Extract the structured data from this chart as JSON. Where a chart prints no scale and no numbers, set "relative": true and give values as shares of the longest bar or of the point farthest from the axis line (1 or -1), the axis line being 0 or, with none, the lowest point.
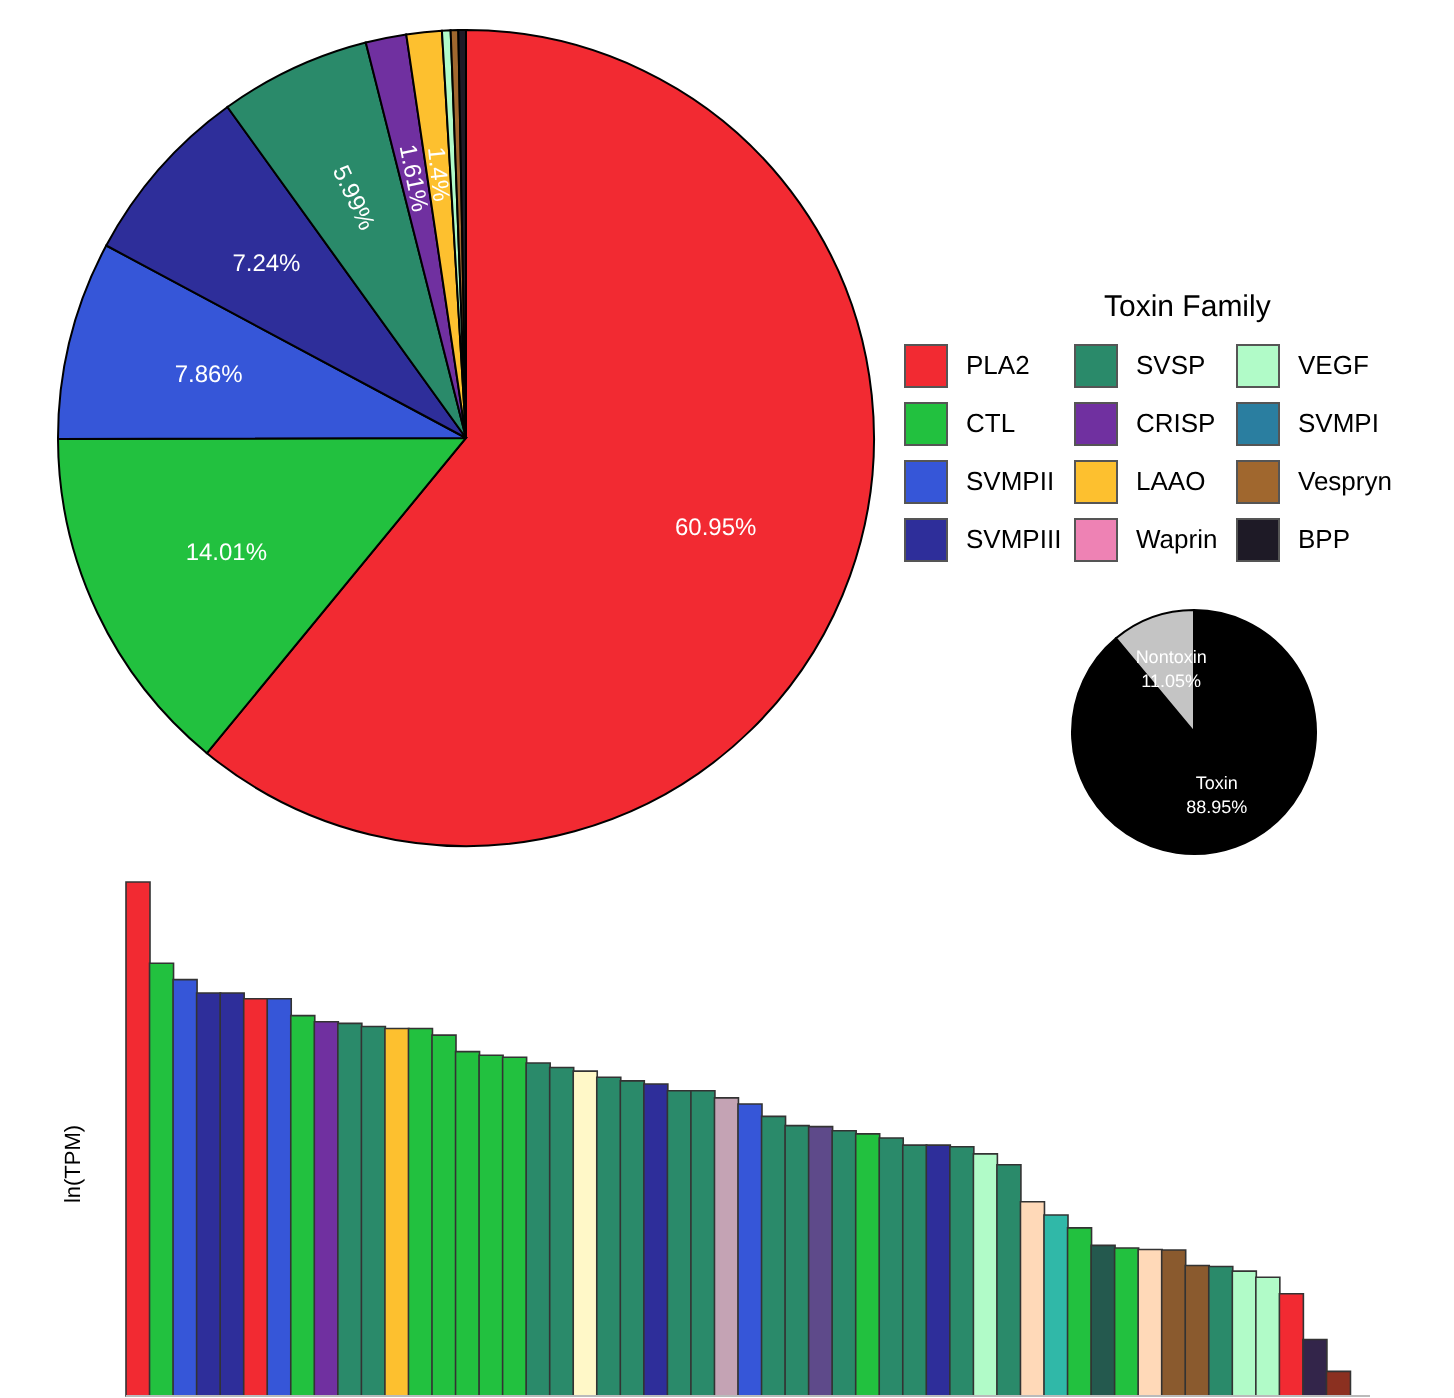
{
  "chart_data": [
    {
      "type": "pie",
      "legend_title": "Toxin Family",
      "legend": "right",
      "categories": [
        "PLA2",
        "CTL",
        "SVMPII",
        "SVMPIII",
        "SVSP",
        "CRISP",
        "LAAO",
        "Waprin",
        "VEGF",
        "SVMPI",
        "Vespryn",
        "BPP"
      ],
      "values": [
        60.95,
        14.01,
        7.86,
        7.24,
        5.99,
        1.61,
        1.4,
        null,
        0.34,
        null,
        0.3,
        0.3
      ],
      "colors": [
        "#f22a32",
        "#22c13f",
        "#3656d8",
        "#2e2e9a",
        "#2a8a6a",
        "#7030a0",
        "#fdc02f",
        "#ee82b4",
        "#b1fbc8",
        "#2a7ea0",
        "#a0672e",
        "#1e1a26"
      ],
      "value_labels": [
        "60.95%",
        "14.01%",
        "7.86%",
        "7.24%",
        "5.99%",
        "1.61%",
        "1.4%",
        null,
        null,
        null,
        null,
        null
      ]
    },
    {
      "type": "pie",
      "categories": [
        "Toxin",
        "Nontoxin"
      ],
      "values": [
        88.95,
        11.05
      ],
      "colors": [
        "#000000",
        "#c4c4c4"
      ],
      "value_labels": [
        "88.95%",
        "11.05%"
      ]
    },
    {
      "type": "bar",
      "relative": true,
      "ylabel": "ln(TPM)",
      "categories": [
        null,
        null,
        null,
        null,
        null,
        null,
        null,
        null,
        null,
        null,
        null,
        null,
        null,
        null,
        null,
        null,
        null,
        null,
        null,
        null,
        null,
        null,
        null,
        null,
        null,
        null,
        null,
        null,
        null,
        null,
        null,
        null,
        null,
        null,
        null,
        null,
        null,
        null,
        null,
        null,
        null,
        null,
        null,
        null,
        null,
        null,
        null,
        null,
        null,
        null,
        null,
        null
      ],
      "values": [
        1,
        0.842,
        0.81,
        0.784,
        0.784,
        0.773,
        0.773,
        0.74,
        0.728,
        0.725,
        0.719,
        0.715,
        0.715,
        0.702,
        0.67,
        0.663,
        0.659,
        0.648,
        0.639,
        0.632,
        0.62,
        0.613,
        0.607,
        0.594,
        0.594,
        0.58,
        0.568,
        0.544,
        0.526,
        0.524,
        0.516,
        0.51,
        0.502,
        0.488,
        0.488,
        0.485,
        0.471,
        0.45,
        0.378,
        0.352,
        0.327,
        0.293,
        0.288,
        0.285,
        0.284,
        0.254,
        0.252,
        0.243,
        0.231,
        0.199,
        0.11,
        0.048
      ],
      "colors": [
        "#f22a32",
        "#22c13f",
        "#3656d8",
        "#2e2e9a",
        "#2e2e9a",
        "#f22a32",
        "#3656d8",
        "#22c13f",
        "#7030a0",
        "#2a8a6a",
        "#2a8a6a",
        "#fdc02f",
        "#22c13f",
        "#22c13f",
        "#22c13f",
        "#22c13f",
        "#22c13f",
        "#2a8a6a",
        "#2a8a6a",
        "#fff8c8",
        "#2a8a6a",
        "#2a8a6a",
        "#2e2e9a",
        "#2a8a6a",
        "#2a8a6a",
        "#c4a3b4",
        "#3656d8",
        "#2a8a6a",
        "#2a8a6a",
        "#5e4a8a",
        "#2a8a6a",
        "#22c13f",
        "#2a8a6a",
        "#2a8a6a",
        "#2e2e9a",
        "#2a8a6a",
        "#b1fbc8",
        "#2a8a6a",
        "#ffd9b8",
        "#30b8a8",
        "#22c13f",
        "#24594e",
        "#22c13f",
        "#ffd9b8",
        "#8a5a2e",
        "#8a5a2e",
        "#2a8a6a",
        "#b1fbc8",
        "#b1fbc8",
        "#f22a32",
        "#33254a",
        "#8b3020"
      ]
    }
  ]
}
